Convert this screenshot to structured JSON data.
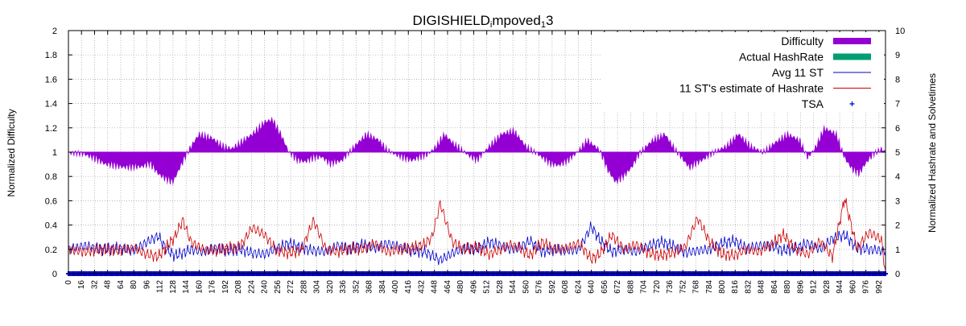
{
  "chart_data": {
    "type": "area",
    "title": "DIGISHIELD_improved_13",
    "title_display": {
      "main": "DIGISHIELD",
      "sub1": "i",
      "mid": "mpoved",
      "sub2": "1",
      "end": "3"
    },
    "xlabel": "",
    "ylabel": "Normalized Difficulty",
    "y2label": "Normalized Hashrate and Solvetimes",
    "xlim": [
      0,
      1000
    ],
    "ylim": [
      0,
      2
    ],
    "y2lim": [
      0,
      10
    ],
    "grid": true,
    "legend_position": "top-right",
    "x_ticks": [
      0,
      16,
      32,
      48,
      64,
      80,
      96,
      112,
      128,
      144,
      160,
      176,
      192,
      208,
      224,
      240,
      256,
      272,
      288,
      304,
      320,
      336,
      352,
      368,
      384,
      400,
      416,
      432,
      448,
      464,
      480,
      496,
      512,
      528,
      544,
      560,
      576,
      592,
      608,
      624,
      640,
      656,
      672,
      688,
      704,
      720,
      736,
      752,
      768,
      784,
      800,
      816,
      832,
      848,
      864,
      880,
      896,
      912,
      928,
      944,
      960,
      976,
      992
    ],
    "y_ticks": [
      0,
      0.2,
      0.4,
      0.6,
      0.8,
      1,
      1.2,
      1.4,
      1.6,
      1.8,
      2
    ],
    "y_tick_labels": [
      "0",
      "0.2",
      "0.4",
      "0.6",
      "0.8",
      "1",
      "1.2",
      "1.4",
      "1.6",
      "1.8",
      "2"
    ],
    "y2_ticks": [
      0,
      1,
      2,
      3,
      4,
      5,
      6,
      7,
      8,
      9,
      10
    ],
    "legend": [
      {
        "name": "Difficulty",
        "style": "box",
        "color": "#9400d3"
      },
      {
        "name": "Actual HashRate",
        "style": "box",
        "color": "#009e73"
      },
      {
        "name": "Avg 11 ST",
        "style": "line",
        "color": "#0000cc"
      },
      {
        "name": "11 ST's estimate of Hashrate",
        "style": "line",
        "color": "#cc0000"
      },
      {
        "name": "TSA",
        "style": "plus",
        "color": "#0000cc"
      }
    ],
    "difficulty_keypoints": {
      "x": [
        0,
        10,
        20,
        30,
        45,
        60,
        75,
        90,
        100,
        110,
        120,
        128,
        135,
        150,
        160,
        175,
        190,
        200,
        210,
        225,
        240,
        250,
        260,
        270,
        280,
        290,
        300,
        310,
        320,
        335,
        350,
        365,
        380,
        390,
        400,
        410,
        420,
        440,
        450,
        460,
        470,
        480,
        490,
        500,
        515,
        530,
        545,
        560,
        575,
        590,
        600,
        610,
        620,
        635,
        650,
        660,
        670,
        680,
        690,
        700,
        715,
        730,
        745,
        760,
        775,
        790,
        805,
        820,
        835,
        850,
        865,
        880,
        895,
        905,
        915,
        925,
        940,
        950,
        960,
        968,
        975,
        985,
        995,
        1000
      ],
      "y": [
        0.99,
        0.99,
        0.98,
        0.95,
        0.9,
        0.88,
        0.87,
        0.88,
        0.9,
        0.82,
        0.77,
        0.75,
        0.85,
        1.05,
        1.15,
        1.12,
        1.05,
        1.03,
        1.08,
        1.15,
        1.25,
        1.27,
        1.15,
        1.0,
        0.93,
        0.92,
        0.95,
        0.96,
        0.9,
        0.93,
        1.05,
        1.15,
        1.1,
        1.02,
        0.98,
        0.95,
        0.93,
        0.98,
        1.05,
        1.15,
        1.08,
        1.03,
        0.97,
        0.93,
        1.05,
        1.15,
        1.18,
        1.05,
        0.98,
        0.9,
        0.89,
        0.92,
        0.98,
        1.1,
        1.02,
        0.85,
        0.75,
        0.8,
        0.88,
        1.0,
        1.1,
        1.15,
        1.0,
        0.87,
        0.93,
        1.0,
        1.05,
        1.15,
        1.05,
        1.0,
        1.08,
        1.15,
        1.1,
        0.95,
        1.05,
        1.2,
        1.15,
        0.95,
        0.85,
        0.82,
        0.9,
        0.98,
        1.03,
        1.0
      ]
    },
    "avg11st_keypoints": {
      "x": [
        0,
        20,
        40,
        60,
        80,
        96,
        110,
        120,
        130,
        140,
        150,
        165,
        180,
        195,
        210,
        225,
        240,
        255,
        270,
        285,
        300,
        315,
        330,
        345,
        360,
        375,
        390,
        405,
        420,
        435,
        445,
        455,
        470,
        485,
        500,
        515,
        530,
        540,
        550,
        565,
        580,
        595,
        610,
        625,
        640,
        650,
        665,
        680,
        695,
        710,
        725,
        740,
        755,
        770,
        785,
        800,
        815,
        830,
        845,
        860,
        875,
        890,
        905,
        920,
        935,
        950,
        965,
        980,
        995,
        1000
      ],
      "y": [
        1.0,
        1.15,
        1.0,
        1.05,
        0.95,
        1.3,
        1.55,
        1.0,
        0.75,
        0.85,
        1.0,
        0.9,
        1.05,
        0.95,
        1.0,
        0.85,
        0.8,
        1.05,
        1.25,
        1.05,
        0.95,
        0.9,
        1.15,
        1.0,
        1.2,
        1.05,
        1.25,
        1.1,
        0.95,
        0.9,
        0.75,
        0.55,
        0.85,
        1.05,
        1.0,
        1.3,
        1.15,
        1.0,
        1.05,
        1.35,
        0.9,
        1.0,
        0.95,
        1.0,
        1.95,
        1.4,
        0.9,
        1.0,
        0.9,
        1.15,
        1.3,
        1.15,
        0.85,
        0.95,
        1.0,
        1.25,
        1.35,
        1.05,
        1.15,
        1.15,
        0.95,
        1.05,
        1.25,
        1.0,
        1.45,
        1.6,
        1.05,
        1.0,
        0.95,
        0.95
      ]
    },
    "estimate_keypoints": {
      "x": [
        0,
        20,
        40,
        60,
        80,
        96,
        110,
        120,
        130,
        140,
        150,
        165,
        180,
        195,
        210,
        225,
        240,
        255,
        270,
        285,
        300,
        315,
        330,
        345,
        360,
        375,
        390,
        405,
        420,
        435,
        445,
        455,
        470,
        485,
        500,
        515,
        530,
        540,
        550,
        565,
        580,
        595,
        610,
        625,
        640,
        650,
        665,
        680,
        695,
        710,
        725,
        740,
        755,
        770,
        785,
        800,
        815,
        830,
        845,
        860,
        875,
        890,
        905,
        920,
        935,
        950,
        965,
        980,
        995,
        1000
      ],
      "y": [
        1.0,
        0.9,
        1.0,
        0.95,
        1.05,
        0.8,
        0.7,
        1.1,
        1.5,
        2.2,
        1.3,
        1.0,
        0.95,
        1.05,
        1.1,
        1.9,
        1.6,
        0.95,
        0.85,
        0.95,
        2.2,
        1.0,
        0.9,
        1.05,
        1.0,
        1.25,
        0.9,
        1.0,
        1.05,
        1.2,
        1.5,
        2.9,
        1.3,
        1.0,
        1.1,
        0.8,
        1.0,
        1.2,
        1.1,
        0.75,
        1.3,
        1.0,
        1.05,
        1.25,
        0.6,
        0.8,
        1.6,
        1.0,
        1.2,
        0.85,
        0.75,
        0.85,
        1.1,
        2.3,
        1.3,
        0.8,
        0.75,
        1.0,
        0.9,
        1.2,
        1.6,
        1.0,
        0.8,
        1.35,
        0.7,
        3.1,
        1.05,
        1.7,
        1.4,
        0.0
      ]
    }
  }
}
